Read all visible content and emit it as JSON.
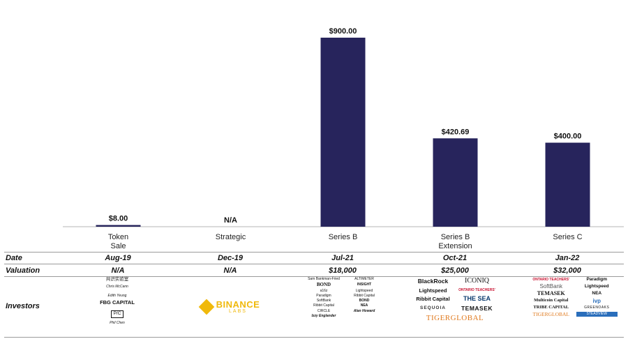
{
  "chart_data": {
    "type": "bar",
    "categories": [
      {
        "line1": "Token",
        "line2": "Sale"
      },
      {
        "line1": "Strategic",
        "line2": ""
      },
      {
        "line1": "Series B",
        "line2": ""
      },
      {
        "line1": "Series B",
        "line2": "Extension"
      },
      {
        "line1": "Series C",
        "line2": ""
      }
    ],
    "values": [
      8.0,
      null,
      900.0,
      420.69,
      400.0
    ],
    "value_labels": [
      "$8.00",
      "N/A",
      "$900.00",
      "$420.69",
      "$400.00"
    ],
    "ylim": [
      0,
      900
    ],
    "bar_color": "#27245C",
    "title": "",
    "xlabel": "",
    "ylabel": ""
  },
  "table": {
    "row_labels": {
      "date": "Date",
      "valuation": "Valuation",
      "investors": "Investors"
    },
    "dates": [
      "Aug-19",
      "Dec-19",
      "Jul-21",
      "Oct-21",
      "Jan-22"
    ],
    "valuations": [
      "N/A",
      "N/A",
      "$18,000",
      "$25,000",
      "$32,000"
    ]
  },
  "investors": {
    "token_sale": [
      "共识实验室",
      "Chris McCann",
      "Edith Yeung",
      "FBG CAPITAL",
      "P/C",
      "Phil Chen"
    ],
    "strategic": {
      "name": "BINANCE",
      "sub": "LABS"
    },
    "series_b": [
      "Sam Bankman-Fried",
      "ALTIMETER",
      "BOND",
      "INSIGHT",
      "a16z",
      "Lightspeed",
      "Paradigm",
      "Ribbit Capital",
      "SoftBank",
      "BOND",
      "Ribbit Capital",
      "NEA",
      "CIRCLE",
      "Alan Howard",
      "Izzy Englander"
    ],
    "series_b_ext": [
      "BlackRock",
      "ICONIQ",
      "Lightspeed",
      "ONTARIO TEACHERS'",
      "Ribbit Capital",
      "THE SEA",
      "SEQUOIA",
      "TEMASEK",
      "TIGERGLOBAL"
    ],
    "series_c": [
      "ONTARIO TEACHERS'",
      "Paradigm",
      "SoftBank",
      "Lightspeed",
      "TEMASEK",
      "NEA",
      "Multicoin Capital",
      "ivp",
      "TRIBE CAPITAL",
      "GREENOAKS",
      "TIGERGLOBAL",
      "STEADVIEW"
    ]
  }
}
